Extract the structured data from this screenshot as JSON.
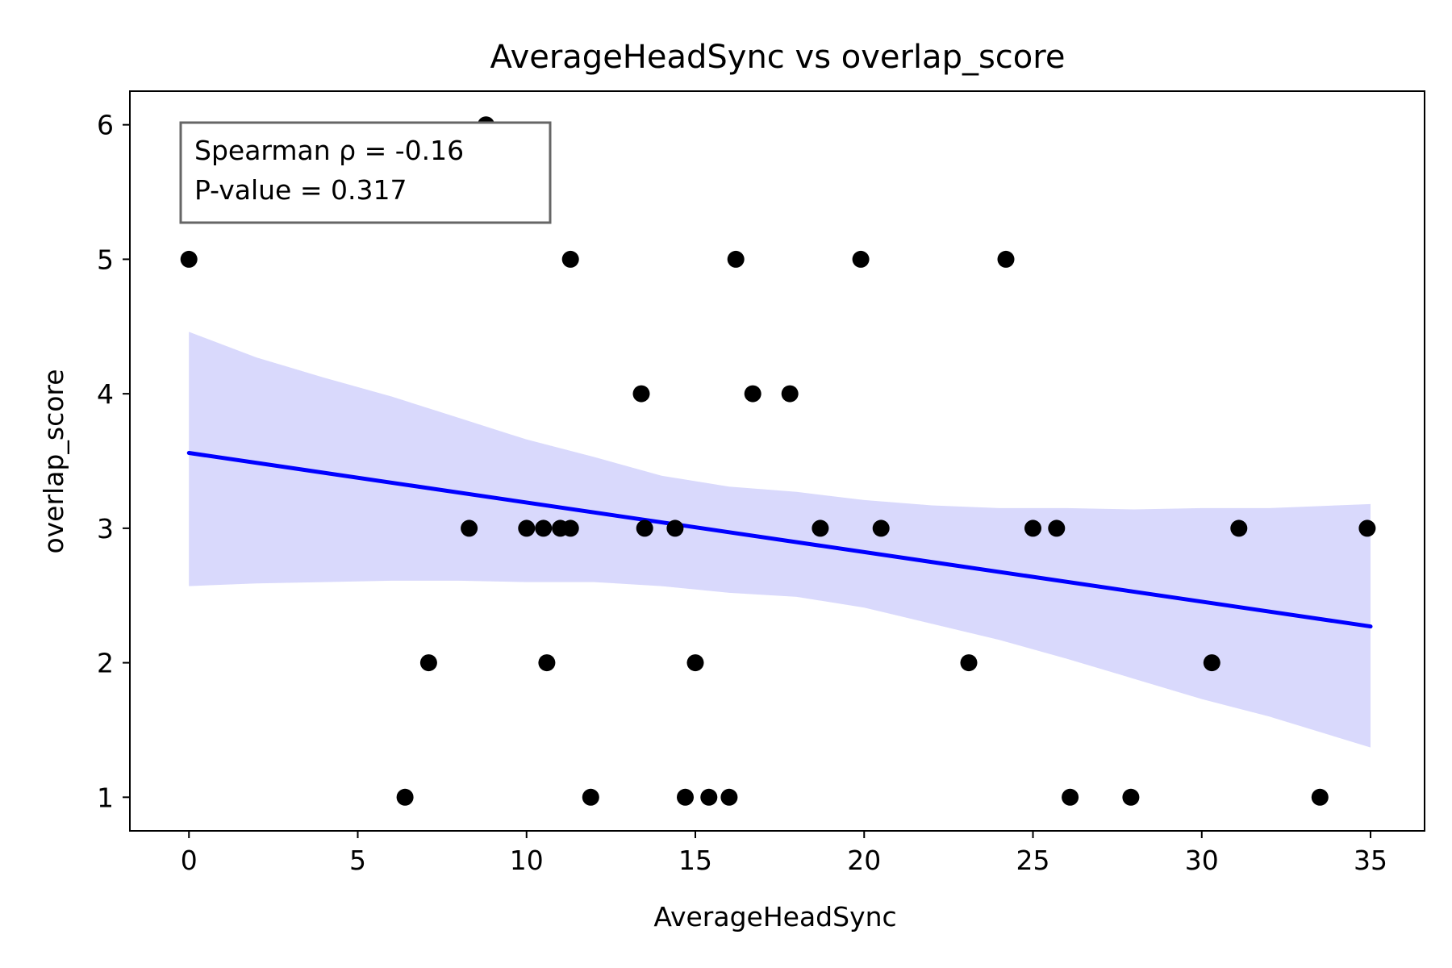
{
  "chart_data": {
    "type": "scatter",
    "title": "AverageHeadSync vs overlap_score",
    "xlabel": "AverageHeadSync",
    "ylabel": "overlap_score",
    "xlim": [
      -1.75,
      36.6
    ],
    "ylim": [
      0.75,
      6.25
    ],
    "xticks": [
      0,
      5,
      10,
      15,
      20,
      25,
      30,
      35
    ],
    "yticks": [
      1,
      2,
      3,
      4,
      5,
      6
    ],
    "grid": false,
    "legend": "none",
    "points": [
      {
        "x": 0.0,
        "y": 5
      },
      {
        "x": 8.8,
        "y": 6
      },
      {
        "x": 11.3,
        "y": 5
      },
      {
        "x": 16.2,
        "y": 5
      },
      {
        "x": 19.9,
        "y": 5
      },
      {
        "x": 24.2,
        "y": 5
      },
      {
        "x": 13.4,
        "y": 4
      },
      {
        "x": 16.7,
        "y": 4
      },
      {
        "x": 17.8,
        "y": 4
      },
      {
        "x": 8.3,
        "y": 3
      },
      {
        "x": 10.0,
        "y": 3
      },
      {
        "x": 10.5,
        "y": 3
      },
      {
        "x": 11.0,
        "y": 3
      },
      {
        "x": 11.3,
        "y": 3
      },
      {
        "x": 13.5,
        "y": 3
      },
      {
        "x": 14.4,
        "y": 3
      },
      {
        "x": 18.7,
        "y": 3
      },
      {
        "x": 20.5,
        "y": 3
      },
      {
        "x": 25.0,
        "y": 3
      },
      {
        "x": 25.7,
        "y": 3
      },
      {
        "x": 31.1,
        "y": 3
      },
      {
        "x": 34.9,
        "y": 3
      },
      {
        "x": 7.1,
        "y": 2
      },
      {
        "x": 10.6,
        "y": 2
      },
      {
        "x": 15.0,
        "y": 2
      },
      {
        "x": 23.1,
        "y": 2
      },
      {
        "x": 30.3,
        "y": 2
      },
      {
        "x": 6.4,
        "y": 1
      },
      {
        "x": 11.9,
        "y": 1
      },
      {
        "x": 14.7,
        "y": 1
      },
      {
        "x": 15.4,
        "y": 1
      },
      {
        "x": 16.0,
        "y": 1
      },
      {
        "x": 26.1,
        "y": 1
      },
      {
        "x": 27.9,
        "y": 1
      },
      {
        "x": 33.5,
        "y": 1
      }
    ],
    "regression_line": {
      "x": [
        0.0,
        35.0
      ],
      "y": [
        3.56,
        2.27
      ]
    },
    "confidence_band": {
      "x": [
        0,
        2,
        4,
        6,
        8,
        10,
        12,
        14,
        16,
        18,
        20,
        22,
        24,
        26,
        28,
        30,
        32,
        35
      ],
      "upper": [
        4.46,
        4.27,
        4.12,
        3.98,
        3.82,
        3.66,
        3.53,
        3.39,
        3.31,
        3.27,
        3.21,
        3.17,
        3.15,
        3.15,
        3.14,
        3.15,
        3.15,
        3.18
      ],
      "lower": [
        2.57,
        2.59,
        2.6,
        2.61,
        2.61,
        2.6,
        2.6,
        2.57,
        2.52,
        2.49,
        2.41,
        2.29,
        2.17,
        2.03,
        1.88,
        1.73,
        1.6,
        1.37
      ]
    },
    "annotation": {
      "line1": "Spearman ρ = -0.16",
      "line2": "P-value = 0.317"
    },
    "colors": {
      "points": "#000000",
      "line": "#0000ff",
      "band": "#d9d9fc",
      "annotation_border": "#666666"
    }
  }
}
